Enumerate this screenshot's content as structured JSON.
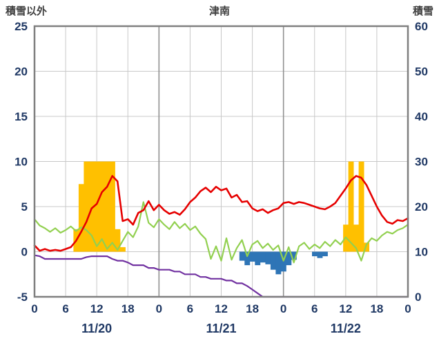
{
  "chart_data": {
    "type": "line+bar",
    "title": "津南",
    "left_axis": {
      "label": "積雪以外",
      "min": -5,
      "max": 25,
      "ticks": [
        25,
        20,
        15,
        10,
        5,
        0,
        -5
      ]
    },
    "right_axis": {
      "label": "積雪",
      "min": 0,
      "max": 60,
      "ticks": [
        60,
        50,
        40,
        30,
        20,
        10,
        0
      ]
    },
    "x_hours_total": 72,
    "x_tick_hours": [
      0,
      6,
      12,
      18,
      24,
      30,
      36,
      42,
      48,
      54,
      60,
      66,
      72
    ],
    "x_tick_labels": [
      "0",
      "6",
      "12",
      "18",
      "0",
      "6",
      "12",
      "18",
      "0",
      "6",
      "12",
      "18",
      "0"
    ],
    "date_labels": [
      "11/20",
      "11/21",
      "11/22"
    ],
    "date_label_hours": [
      12,
      36,
      60
    ],
    "colors": {
      "grid": "#c8c8c8",
      "day_grid": "#909090",
      "frame": "#7f7f7f",
      "tick_text": "#1f3864",
      "title_text": "#3f3f3f"
    },
    "series": [
      {
        "name": "orange-bars",
        "type": "bar",
        "color": "#FFC000",
        "points": [
          [
            8,
            2.5
          ],
          [
            9,
            7.5
          ],
          [
            10,
            10
          ],
          [
            11,
            10
          ],
          [
            12,
            10
          ],
          [
            13,
            10
          ],
          [
            14,
            10
          ],
          [
            15,
            10
          ],
          [
            16,
            2.5
          ],
          [
            17,
            0.5
          ],
          [
            60,
            3
          ],
          [
            61,
            10
          ],
          [
            62,
            3
          ],
          [
            63,
            10
          ],
          [
            64,
            1
          ]
        ]
      },
      {
        "name": "blue-bars",
        "type": "bar",
        "color": "#2E75B6",
        "points": [
          [
            40,
            -1.0
          ],
          [
            41,
            -1.5
          ],
          [
            42,
            -1.1
          ],
          [
            43,
            -1.5
          ],
          [
            44,
            -1.2
          ],
          [
            45,
            -1.4
          ],
          [
            46,
            -2.0
          ],
          [
            47,
            -2.5
          ],
          [
            48,
            -2.2
          ],
          [
            49,
            -1.5
          ],
          [
            50,
            -0.9
          ],
          [
            54,
            -0.5
          ],
          [
            55,
            -0.7
          ],
          [
            56,
            -0.5
          ]
        ]
      },
      {
        "name": "purple-line",
        "type": "line",
        "color": "#7030A0",
        "width": 2.2,
        "values": [
          -0.4,
          -0.5,
          -0.8,
          -0.8,
          -0.8,
          -0.8,
          -0.8,
          -0.8,
          -0.8,
          -0.8,
          -0.6,
          -0.5,
          -0.5,
          -0.5,
          -0.5,
          -0.8,
          -1.0,
          -1.0,
          -1.2,
          -1.5,
          -1.5,
          -1.5,
          -1.8,
          -1.8,
          -2.0,
          -2.0,
          -2.0,
          -2.2,
          -2.2,
          -2.5,
          -2.5,
          -2.5,
          -2.8,
          -2.8,
          -3.0,
          -3.0,
          -3.0,
          -3.2,
          -3.2,
          -3.5,
          -3.5,
          -3.8,
          -4.2,
          -4.6,
          -5.0,
          -5.0,
          -5.0,
          -5.0,
          -5.0,
          -5.0,
          -5.0,
          -5.0,
          -5.0,
          -5.0,
          -5.0,
          -5.0,
          -5.0,
          -5.0,
          -5.0,
          -5.0,
          -5.0,
          -5.0,
          -5.0,
          -5.0,
          -5.0,
          -5.0,
          -5.0,
          -5.0,
          -5.0,
          -5.0,
          -5.0,
          -5.0,
          -5.0
        ]
      },
      {
        "name": "green-line",
        "type": "line",
        "color": "#92D050",
        "width": 2.2,
        "values": [
          3.6,
          2.9,
          2.6,
          2.2,
          2.6,
          2.1,
          2.4,
          2.8,
          2.3,
          2.7,
          2.4,
          1.8,
          0.6,
          1.4,
          0.3,
          1.0,
          0.2,
          1.2,
          2.2,
          1.6,
          2.8,
          5.5,
          3.2,
          2.7,
          3.6,
          3.0,
          2.5,
          3.3,
          2.6,
          3.1,
          2.4,
          2.8,
          2.0,
          1.4,
          -0.8,
          0.6,
          -1.0,
          1.5,
          -0.9,
          0.4,
          1.3,
          -0.5,
          0.8,
          1.2,
          0.4,
          0.9,
          0.2,
          0.7,
          -1.0,
          0.5,
          -1.2,
          0.6,
          1.0,
          0.3,
          0.8,
          0.4,
          1.1,
          0.6,
          1.3,
          0.8,
          1.6,
          1.0,
          0.4,
          -1.0,
          0.8,
          1.5,
          1.2,
          1.8,
          2.2,
          2.0,
          2.4,
          2.6,
          3.0
        ]
      },
      {
        "name": "red-line",
        "type": "line",
        "color": "#E60000",
        "width": 2.6,
        "values": [
          0.7,
          0.1,
          0.3,
          0.1,
          0.2,
          0.1,
          0.3,
          0.5,
          1.2,
          2.2,
          3.3,
          4.8,
          5.3,
          6.6,
          7.2,
          8.4,
          7.8,
          3.4,
          3.6,
          3.0,
          4.3,
          4.6,
          5.6,
          4.6,
          5.2,
          4.6,
          4.2,
          4.4,
          4.1,
          4.7,
          5.5,
          6.0,
          6.7,
          7.1,
          6.6,
          7.2,
          6.8,
          7.0,
          6.0,
          6.3,
          5.5,
          5.6,
          4.8,
          4.5,
          4.7,
          4.3,
          4.6,
          4.8,
          5.4,
          5.5,
          5.3,
          5.5,
          5.4,
          5.2,
          5.0,
          4.8,
          4.7,
          5.0,
          5.4,
          6.2,
          7.0,
          7.9,
          8.4,
          8.2,
          7.4,
          6.2,
          5.0,
          4.0,
          3.3,
          3.1,
          3.5,
          3.4,
          3.7
        ]
      }
    ]
  }
}
